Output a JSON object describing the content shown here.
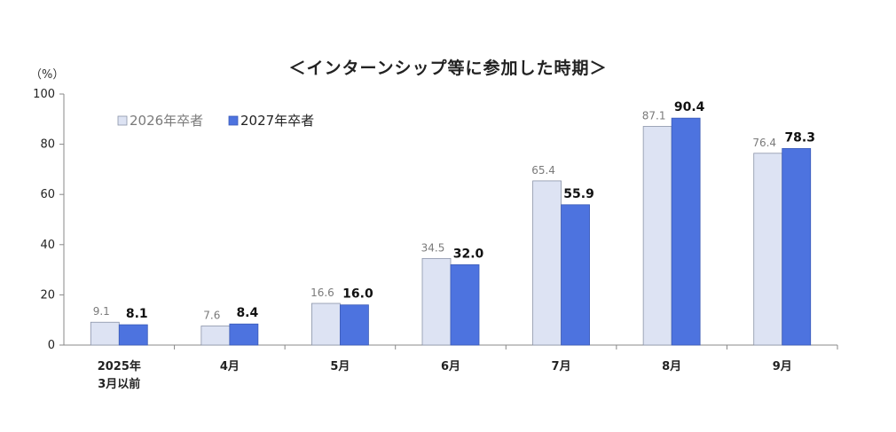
{
  "chart_data": {
    "type": "bar",
    "title": "＜インターンシップ等に参加した時期＞",
    "y_unit": "（%）",
    "ylim": [
      0,
      100
    ],
    "yticks": [
      0,
      20,
      40,
      60,
      80,
      100
    ],
    "categories": [
      [
        "2025年",
        "3月以前"
      ],
      [
        "4月"
      ],
      [
        "5月"
      ],
      [
        "6月"
      ],
      [
        "7月"
      ],
      [
        "8月"
      ],
      [
        "9月"
      ]
    ],
    "series": [
      {
        "name": "2026年卒者",
        "color": "#dde3f3",
        "values": [
          9.1,
          7.6,
          16.6,
          34.5,
          65.4,
          87.1,
          76.4
        ]
      },
      {
        "name": "2027年卒者",
        "color": "#4d73df",
        "values": [
          8.1,
          8.4,
          16.0,
          32.0,
          55.9,
          90.4,
          78.3
        ]
      }
    ],
    "legend_position": "top-left",
    "grid": false
  }
}
